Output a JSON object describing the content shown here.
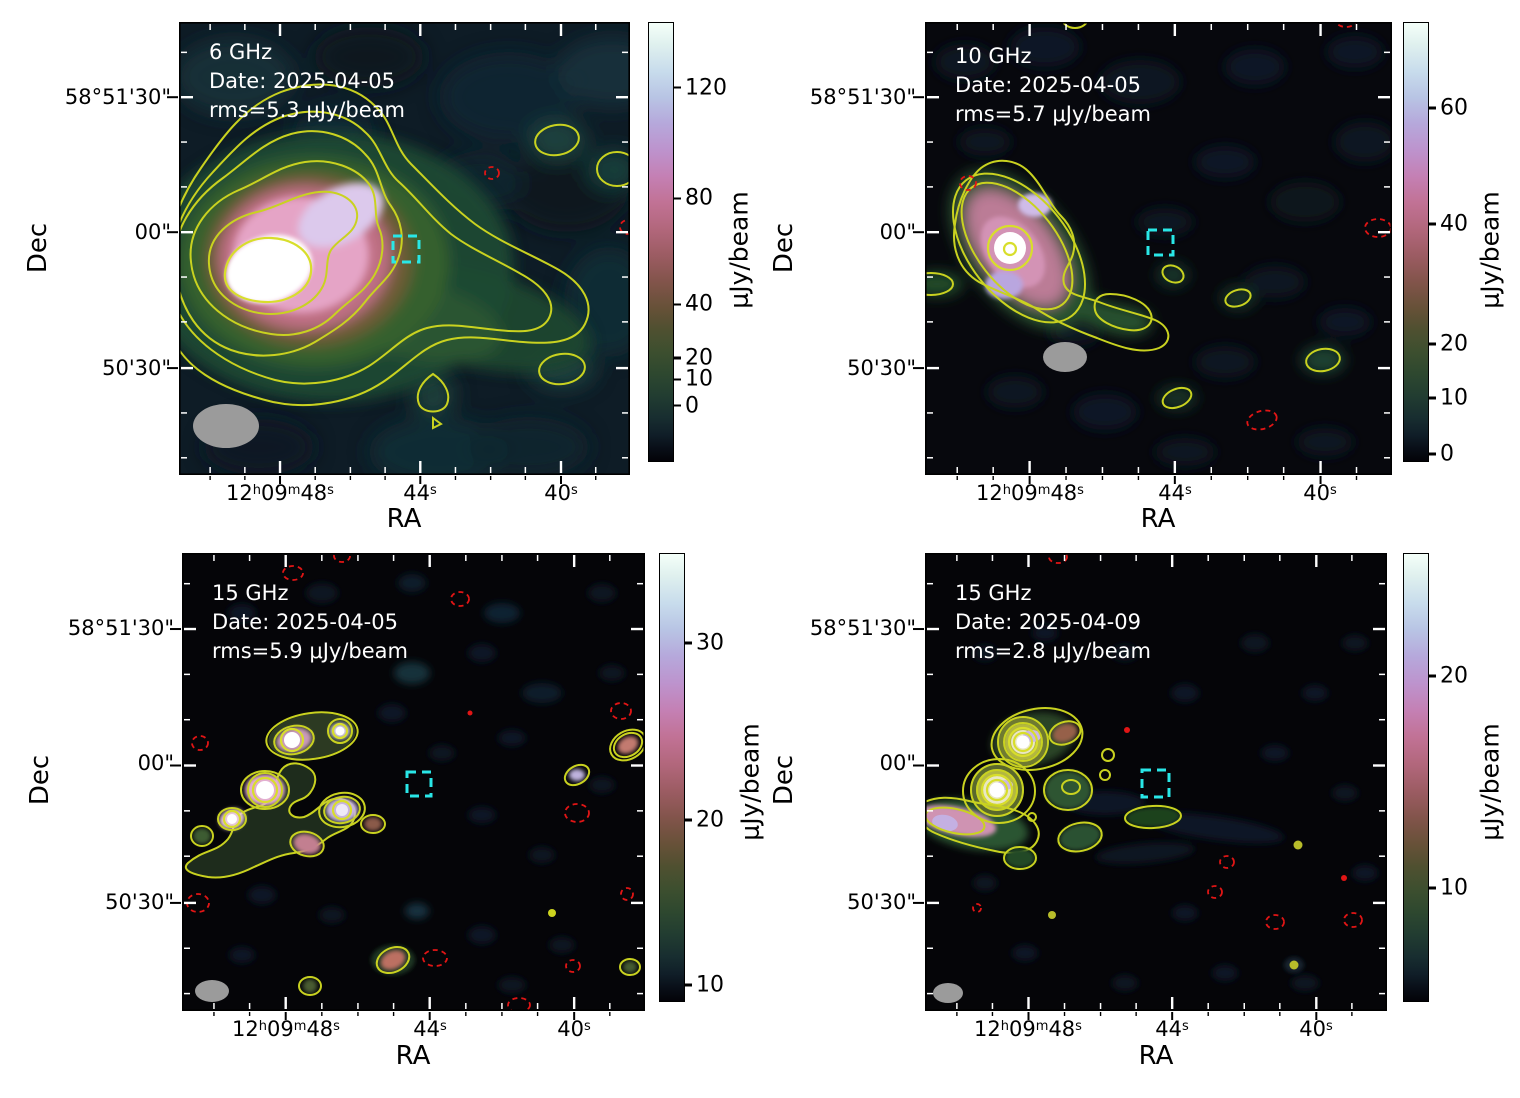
{
  "figure": {
    "description": "Four-panel radio continuum images with contours and colorbars"
  },
  "axes": {
    "dec_label": "Dec",
    "ra_label": "RA",
    "dec_ticks": [
      "58°51'30\"",
      "00\"",
      "50'30\""
    ],
    "ra_tick_1": {
      "a": "12",
      "as": "h",
      "b": "09",
      "bs": "m",
      "c": "48",
      "cs": "s"
    },
    "ra_tick_2": {
      "a": "44",
      "as": "s"
    },
    "ra_tick_3": {
      "a": "40",
      "as": "s"
    }
  },
  "markers": {
    "positive_contours": "yellow solid contours",
    "negative_contours": "red dashed contours",
    "target_box": "cyan dashed square",
    "beam": "grey filled ellipse (synthesized beam)"
  },
  "colors": {
    "positive_contour": "#c9d220",
    "negative_contour": "#e11515",
    "target_box": "#29e7e7",
    "beam": "#9b9b9b",
    "annotation_text": "#ffffff"
  },
  "panels": [
    {
      "frequency": "6 GHz",
      "date": "Date: 2025-04-05",
      "rms": "rms=5.3 μJy/beam",
      "colorbar": {
        "label": "μJy/beam",
        "ticks": [
          "120",
          "80",
          "40",
          "20",
          "10",
          "0"
        ]
      }
    },
    {
      "frequency": "10 GHz",
      "date": "Date: 2025-04-05",
      "rms": "rms=5.7 μJy/beam",
      "colorbar": {
        "label": "μJy/beam",
        "ticks": [
          "60",
          "40",
          "20",
          "10",
          "0"
        ]
      }
    },
    {
      "frequency": "15 GHz",
      "date": "Date: 2025-04-05",
      "rms": "rms=5.9 μJy/beam",
      "colorbar": {
        "label": "μJy/beam",
        "ticks": [
          "30",
          "20",
          "10"
        ]
      }
    },
    {
      "frequency": "15 GHz",
      "date": "Date: 2025-04-09",
      "rms": "rms=2.8 μJy/beam",
      "colorbar": {
        "label": "μJy/beam",
        "ticks": [
          "20",
          "10"
        ]
      }
    }
  ],
  "chart_data": [
    {
      "type": "heatmap",
      "title": "6 GHz 2025-04-05",
      "annotations": [
        "6 GHz",
        "Date: 2025-04-05",
        "rms=5.3 μJy/beam"
      ],
      "xlabel": "RA",
      "ylabel": "Dec",
      "x_ticks": [
        "12h09m48s",
        "44s",
        "40s"
      ],
      "y_ticks": [
        "58°51'30\"",
        "00\"",
        "50'30\""
      ],
      "rms_uJy_per_beam": 5.3,
      "colorbar": {
        "label": "μJy/beam",
        "ticks": [
          0,
          10,
          20,
          40,
          80,
          120
        ]
      },
      "content": "bright extended source east of center with western tail, yellow positive contours, sparse red dashed negative contours, cyan target box near center, grey beam ellipse bottom-left"
    },
    {
      "type": "heatmap",
      "title": "10 GHz 2025-04-05",
      "annotations": [
        "10 GHz",
        "Date: 2025-04-05",
        "rms=5.7 μJy/beam"
      ],
      "xlabel": "RA",
      "ylabel": "Dec",
      "x_ticks": [
        "12h09m48s",
        "44s",
        "40s"
      ],
      "y_ticks": [
        "58°51'30\"",
        "00\"",
        "50'30\""
      ],
      "rms_uJy_per_beam": 5.7,
      "colorbar": {
        "label": "μJy/beam",
        "ticks": [
          0,
          10,
          20,
          40,
          60
        ]
      },
      "content": "compact bright source east with short southwestern tail, isolated small yellow contour islands, red dashed negatives, cyan target box, grey beam"
    },
    {
      "type": "heatmap",
      "title": "15 GHz 2025-04-05",
      "annotations": [
        "15 GHz",
        "Date: 2025-04-05",
        "rms=5.9 μJy/beam"
      ],
      "xlabel": "RA",
      "ylabel": "Dec",
      "x_ticks": [
        "12h09m48s",
        "44s",
        "40s"
      ],
      "y_ticks": [
        "58°51'30\"",
        "00\"",
        "50'30\""
      ],
      "rms_uJy_per_beam": 5.9,
      "colorbar": {
        "label": "μJy/beam",
        "ticks": [
          10,
          20,
          30
        ]
      },
      "content": "chain of compact knots northeast, many faint noise blobs, scattered red dashed negatives, cyan target box, grey beam"
    },
    {
      "type": "heatmap",
      "title": "15 GHz 2025-04-09",
      "annotations": [
        "15 GHz",
        "Date: 2025-04-09",
        "rms=2.8 μJy/beam"
      ],
      "xlabel": "RA",
      "ylabel": "Dec",
      "x_ticks": [
        "12h09m48s",
        "44s",
        "40s"
      ],
      "y_ticks": [
        "58°51'30\"",
        "00\"",
        "50'30\""
      ],
      "rms_uJy_per_beam": 2.8,
      "colorbar": {
        "label": "μJy/beam",
        "ticks": [
          10,
          20
        ]
      },
      "content": "two bright multi-ring knots northeast with pink wing, green contour blobs, red dashed negatives, cyan target box, grey beam"
    }
  ]
}
